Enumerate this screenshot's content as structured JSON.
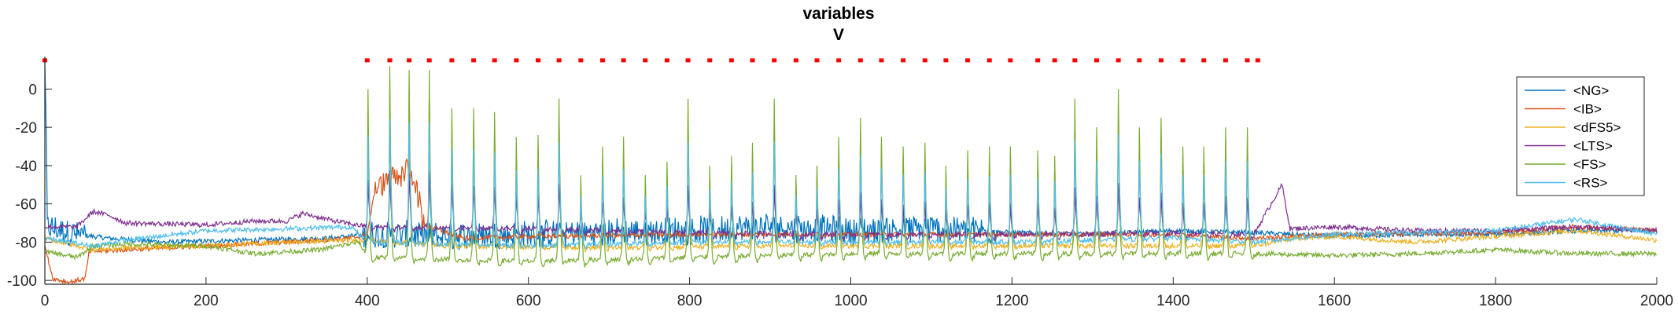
{
  "chart_data": {
    "type": "line",
    "title": "variables",
    "subtitle": "V",
    "xlabel": "",
    "ylabel": "",
    "xlim": [
      0,
      2000
    ],
    "ylim": [
      -102,
      17
    ],
    "x_ticks": [
      0,
      200,
      400,
      600,
      800,
      1000,
      1200,
      1400,
      1600,
      1800,
      2000
    ],
    "y_ticks": [
      0,
      -20,
      -40,
      -60,
      -80,
      -100
    ],
    "grid": false,
    "legend_placement": "top-right",
    "series": [
      {
        "name": "<NG>",
        "color": "#0072BD",
        "points": [
          [
            0,
            -72
          ],
          [
            40,
            -76
          ],
          [
            80,
            -78
          ],
          [
            150,
            -80
          ],
          [
            250,
            -79
          ],
          [
            350,
            -78
          ],
          [
            400,
            -76
          ],
          [
            500,
            -77
          ],
          [
            600,
            -76
          ],
          [
            700,
            -75
          ],
          [
            800,
            -74
          ],
          [
            900,
            -72
          ],
          [
            1000,
            -74
          ],
          [
            1100,
            -73
          ],
          [
            1200,
            -75
          ],
          [
            1300,
            -76
          ],
          [
            1400,
            -74
          ],
          [
            1500,
            -75
          ],
          [
            1550,
            -76
          ],
          [
            1600,
            -77
          ],
          [
            1700,
            -76
          ],
          [
            1800,
            -76
          ],
          [
            1900,
            -74
          ],
          [
            2000,
            -74
          ]
        ],
        "burst_ranges": [
          [
            0,
            50
          ],
          [
            395,
            1180
          ]
        ],
        "burst_amplitude": 7
      },
      {
        "name": "<IB>",
        "color": "#D95319",
        "points": [
          [
            0,
            -82
          ],
          [
            10,
            -99
          ],
          [
            30,
            -101
          ],
          [
            50,
            -99
          ],
          [
            55,
            -85
          ],
          [
            100,
            -84
          ],
          [
            200,
            -82
          ],
          [
            300,
            -80
          ],
          [
            380,
            -78
          ],
          [
            400,
            -76
          ],
          [
            410,
            -52
          ],
          [
            430,
            -47
          ],
          [
            440,
            -47
          ],
          [
            450,
            -40
          ],
          [
            460,
            -49
          ],
          [
            470,
            -71
          ],
          [
            520,
            -78
          ],
          [
            600,
            -77
          ],
          [
            800,
            -76
          ],
          [
            1000,
            -76
          ],
          [
            1200,
            -76
          ],
          [
            1400,
            -76
          ],
          [
            1500,
            -78
          ],
          [
            1600,
            -76
          ],
          [
            1800,
            -75
          ],
          [
            1900,
            -72
          ],
          [
            2000,
            -74
          ]
        ],
        "burst_ranges": [
          [
            410,
            470
          ]
        ],
        "burst_amplitude": 6
      },
      {
        "name": "<dFS5>",
        "color": "#EDB120",
        "points": [
          [
            0,
            -78
          ],
          [
            60,
            -84
          ],
          [
            100,
            -83
          ],
          [
            200,
            -82
          ],
          [
            300,
            -80
          ],
          [
            390,
            -79
          ],
          [
            500,
            -82
          ],
          [
            700,
            -83
          ],
          [
            900,
            -82
          ],
          [
            1100,
            -82
          ],
          [
            1300,
            -82
          ],
          [
            1500,
            -82
          ],
          [
            1550,
            -78
          ],
          [
            1600,
            -77
          ],
          [
            1700,
            -80
          ],
          [
            1800,
            -77
          ],
          [
            1900,
            -74
          ],
          [
            2000,
            -79
          ]
        ],
        "burst_ranges": [],
        "burst_amplitude": 0
      },
      {
        "name": "<LTS>",
        "color": "#7E2F8E",
        "points": [
          [
            0,
            -72
          ],
          [
            40,
            -72
          ],
          [
            60,
            -64
          ],
          [
            80,
            -66
          ],
          [
            100,
            -70
          ],
          [
            200,
            -71
          ],
          [
            260,
            -69
          ],
          [
            300,
            -69
          ],
          [
            320,
            -65
          ],
          [
            360,
            -69
          ],
          [
            400,
            -72
          ],
          [
            600,
            -73
          ],
          [
            800,
            -75
          ],
          [
            1000,
            -76
          ],
          [
            1200,
            -76
          ],
          [
            1400,
            -75
          ],
          [
            1500,
            -76
          ],
          [
            1535,
            -50
          ],
          [
            1545,
            -73
          ],
          [
            1600,
            -72
          ],
          [
            1700,
            -74
          ],
          [
            1800,
            -74
          ],
          [
            1900,
            -72
          ],
          [
            2000,
            -74
          ]
        ],
        "burst_ranges": [],
        "burst_amplitude": 0
      },
      {
        "name": "<FS>",
        "color": "#77AC30",
        "points": [
          [
            0,
            -85
          ],
          [
            40,
            -88
          ],
          [
            60,
            -82
          ],
          [
            100,
            -81
          ],
          [
            200,
            -82
          ],
          [
            260,
            -86
          ],
          [
            340,
            -84
          ],
          [
            390,
            -80
          ],
          [
            400,
            -88
          ],
          [
            600,
            -90
          ],
          [
            800,
            -88
          ],
          [
            1000,
            -86
          ],
          [
            1200,
            -86
          ],
          [
            1400,
            -86
          ],
          [
            1500,
            -86
          ],
          [
            1600,
            -87
          ],
          [
            1700,
            -86
          ],
          [
            1800,
            -84
          ],
          [
            1900,
            -86
          ],
          [
            2000,
            -86
          ]
        ],
        "burst_ranges": [],
        "burst_amplitude": 0
      },
      {
        "name": "<RS>",
        "color": "#4DBEEE",
        "points": [
          [
            0,
            -78
          ],
          [
            60,
            -82
          ],
          [
            100,
            -79
          ],
          [
            200,
            -74
          ],
          [
            300,
            -73
          ],
          [
            380,
            -72
          ],
          [
            400,
            -80
          ],
          [
            600,
            -82
          ],
          [
            800,
            -80
          ],
          [
            1000,
            -80
          ],
          [
            1200,
            -80
          ],
          [
            1400,
            -78
          ],
          [
            1500,
            -80
          ],
          [
            1600,
            -76
          ],
          [
            1800,
            -74
          ],
          [
            1900,
            -68
          ],
          [
            2000,
            -76
          ]
        ],
        "burst_ranges": [],
        "burst_amplitude": 0
      }
    ],
    "spike_times": [
      401,
      428,
      452,
      477,
      505,
      532,
      558,
      585,
      612,
      638,
      665,
      692,
      718,
      745,
      772,
      798,
      825,
      852,
      878,
      905,
      932,
      958,
      985,
      1012,
      1038,
      1065,
      1092,
      1118,
      1145,
      1172,
      1198,
      1232,
      1253,
      1278,
      1305,
      1332,
      1358,
      1385,
      1412,
      1438,
      1465,
      1492
    ],
    "spike_peaks": [
      0,
      12,
      10,
      10,
      -10,
      -10,
      -12,
      -25,
      -24,
      -5,
      -45,
      -30,
      -25,
      -45,
      -38,
      -5,
      -40,
      -35,
      -28,
      -5,
      -45,
      -40,
      -25,
      -15,
      -25,
      -30,
      -28,
      -40,
      -32,
      -30,
      -30,
      -32,
      -35,
      -5,
      -20,
      0,
      -20,
      -15,
      -30,
      -30,
      -20,
      -20
    ],
    "raster_markers": {
      "color": "#FF0000",
      "y": 15,
      "x": [
        0,
        400,
        428,
        452,
        477,
        505,
        532,
        558,
        585,
        612,
        638,
        665,
        692,
        718,
        745,
        772,
        798,
        825,
        852,
        878,
        905,
        932,
        958,
        985,
        1012,
        1038,
        1065,
        1092,
        1118,
        1145,
        1172,
        1198,
        1232,
        1253,
        1278,
        1305,
        1332,
        1358,
        1385,
        1412,
        1438,
        1465,
        1492,
        1505
      ]
    }
  }
}
